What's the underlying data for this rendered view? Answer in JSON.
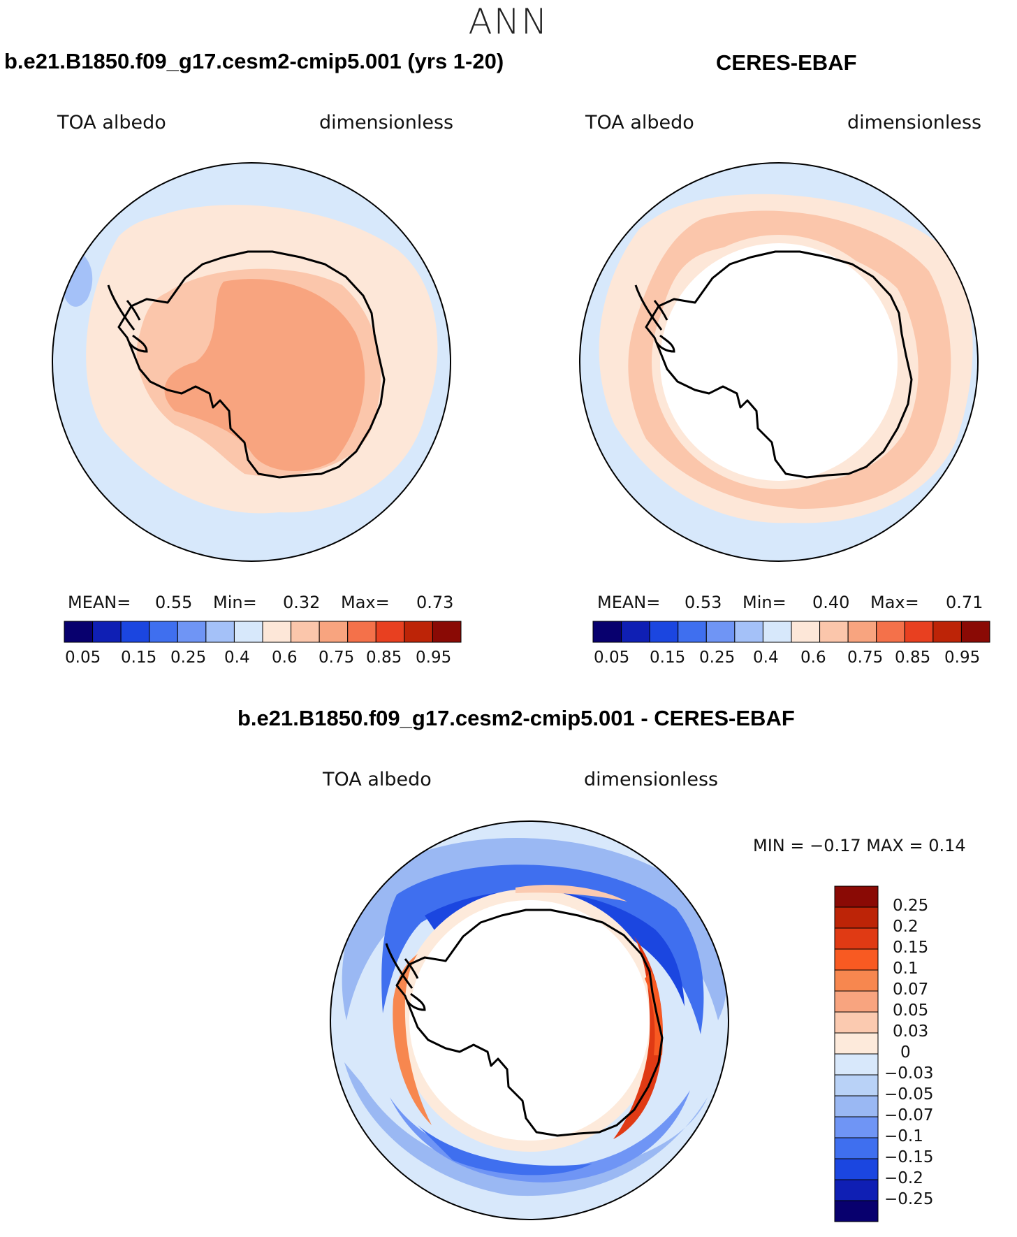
{
  "season": "ANN",
  "colors": {
    "seq": [
      "#08006e",
      "#0f1fb4",
      "#1b46e0",
      "#3f6fef",
      "#6f95f5",
      "#a4c1f8",
      "#d7e8fb",
      "#fde7d8",
      "#fbc6ab",
      "#f8a47f",
      "#f4714a",
      "#e84020",
      "#bd2407",
      "#8a0a05"
    ],
    "diff": [
      "#8a0a05",
      "#bd2407",
      "#e03a14",
      "#f85a22",
      "#f7874f",
      "#f8a47f",
      "#fbcab0",
      "#fdeadb",
      "#d8e8fb",
      "#b9d2f7",
      "#9ab8f3",
      "#6f95f5",
      "#3f6fef",
      "#1b46e0",
      "#0f1fb4",
      "#08006e"
    ]
  },
  "panel_model": {
    "title": "b.e21.B1850.f09_g17.cesm2-cmip5.001 (yrs 1-20)",
    "left_label": "TOA albedo",
    "right_label": "dimensionless",
    "stats": {
      "mean_label": "MEAN=",
      "mean": "0.55",
      "min_label": "Min=",
      "min": "0.32",
      "max_label": "Max=",
      "max": "0.73"
    },
    "ticks": [
      "0.05",
      "0.15",
      "0.25",
      "0.4",
      "0.6",
      "0.75",
      "0.85",
      "0.95"
    ]
  },
  "panel_obs": {
    "title": "CERES-EBAF",
    "left_label": "TOA albedo",
    "right_label": "dimensionless",
    "stats": {
      "mean_label": "MEAN=",
      "mean": "0.53",
      "min_label": "Min=",
      "min": "0.40",
      "max_label": "Max=",
      "max": "0.71"
    },
    "ticks": [
      "0.05",
      "0.15",
      "0.25",
      "0.4",
      "0.6",
      "0.75",
      "0.85",
      "0.95"
    ]
  },
  "panel_diff": {
    "title": "b.e21.B1850.f09_g17.cesm2-cmip5.001 - CERES-EBAF",
    "left_label": "TOA albedo",
    "right_label": "dimensionless",
    "minmax_label": "MIN =   −0.17  MAX =     0.14",
    "ticks": [
      "0.25",
      "0.2",
      "0.15",
      "0.1",
      "0.07",
      "0.05",
      "0.03",
      "0",
      "−0.03",
      "−0.05",
      "−0.07",
      "−0.1",
      "−0.15",
      "−0.2",
      "−0.25"
    ]
  },
  "chart_data": [
    {
      "type": "heatmap",
      "title": "b.e21.B1850.f09_g17.cesm2-cmip5.001 (yrs 1-20)",
      "variable": "TOA albedo",
      "units": "dimensionless",
      "projection": "south polar stereographic",
      "mean": 0.55,
      "min": 0.32,
      "max": 0.73,
      "levels": [
        0.05,
        0.1,
        0.15,
        0.2,
        0.25,
        0.3,
        0.4,
        0.5,
        0.6,
        0.7,
        0.75,
        0.8,
        0.85,
        0.9,
        0.95
      ]
    },
    {
      "type": "heatmap",
      "title": "CERES-EBAF",
      "variable": "TOA albedo",
      "units": "dimensionless",
      "projection": "south polar stereographic",
      "mean": 0.53,
      "min": 0.4,
      "max": 0.71,
      "levels": [
        0.05,
        0.1,
        0.15,
        0.2,
        0.25,
        0.3,
        0.4,
        0.5,
        0.6,
        0.7,
        0.75,
        0.8,
        0.85,
        0.9,
        0.95
      ]
    },
    {
      "type": "heatmap",
      "title": "b.e21.B1850.f09_g17.cesm2-cmip5.001 - CERES-EBAF",
      "variable": "TOA albedo",
      "units": "dimensionless",
      "projection": "south polar stereographic",
      "min": -0.17,
      "max": 0.14,
      "levels": [
        -0.25,
        -0.2,
        -0.15,
        -0.1,
        -0.07,
        -0.05,
        -0.03,
        0,
        0.03,
        0.05,
        0.07,
        0.1,
        0.15,
        0.2,
        0.25
      ]
    }
  ]
}
